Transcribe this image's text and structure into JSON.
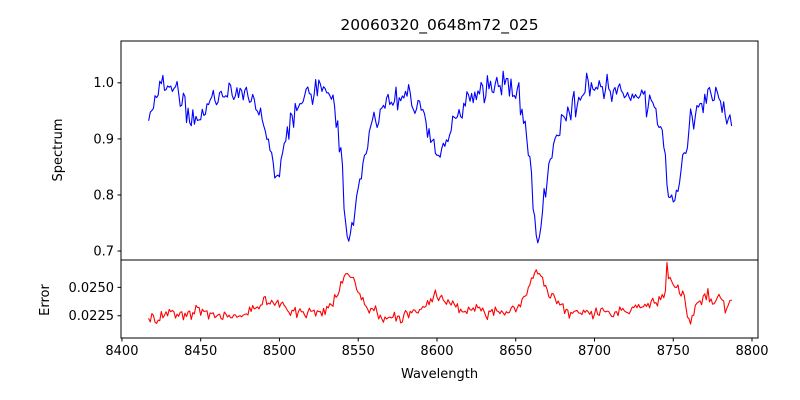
{
  "title": "20060320_0648m72_025",
  "xaxis": {
    "label": "Wavelength",
    "ticks": [
      {
        "v": 8400,
        "label": "8400"
      },
      {
        "v": 8450,
        "label": "8450"
      },
      {
        "v": 8500,
        "label": "8500"
      },
      {
        "v": 8550,
        "label": "8550"
      },
      {
        "v": 8600,
        "label": "8600"
      },
      {
        "v": 8650,
        "label": "8650"
      },
      {
        "v": 8700,
        "label": "8700"
      },
      {
        "v": 8750,
        "label": "8750"
      },
      {
        "v": 8800,
        "label": "8800"
      }
    ],
    "xlim": [
      8399.4,
      8803.8
    ]
  },
  "chart_data": [
    {
      "type": "line",
      "id": "spectrum",
      "ylabel": "Spectrum",
      "color": "#0000ff",
      "line_width": 1.1,
      "grid": false,
      "legend": null,
      "ylim": [
        0.684,
        1.0746
      ],
      "yticks": [
        {
          "v": 0.7,
          "label": "0.7"
        },
        {
          "v": 0.8,
          "label": "0.8"
        },
        {
          "v": 0.9,
          "label": "0.9"
        },
        {
          "v": 1.0,
          "label": "1.0"
        }
      ],
      "x_data_range": [
        8417,
        8787
      ],
      "sample_step": 1.0,
      "noise_sigma": 0.0125,
      "noise_seed": 20060320,
      "clamp": [
        0.695,
        1.062
      ],
      "envelope": [
        [
          8417,
          0.925
        ],
        [
          8419,
          0.96
        ],
        [
          8422,
          0.985
        ],
        [
          8426,
          0.995
        ],
        [
          8430,
          0.99
        ],
        [
          8435,
          0.975
        ],
        [
          8440,
          0.955
        ],
        [
          8444,
          0.935
        ],
        [
          8448,
          0.93
        ],
        [
          8452,
          0.945
        ],
        [
          8456,
          0.965
        ],
        [
          8461,
          0.975
        ],
        [
          8466,
          0.985
        ],
        [
          8472,
          0.988
        ],
        [
          8478,
          0.985
        ],
        [
          8483,
          0.97
        ],
        [
          8488,
          0.945
        ],
        [
          8492,
          0.905
        ],
        [
          8495,
          0.865
        ],
        [
          8497,
          0.835
        ],
        [
          8499,
          0.83
        ],
        [
          8501,
          0.855
        ],
        [
          8504,
          0.9
        ],
        [
          8508,
          0.935
        ],
        [
          8512,
          0.955
        ],
        [
          8517,
          0.975
        ],
        [
          8522,
          0.985
        ],
        [
          8527,
          0.99
        ],
        [
          8531,
          0.985
        ],
        [
          8534,
          0.965
        ],
        [
          8537,
          0.925
        ],
        [
          8539,
          0.87
        ],
        [
          8541,
          0.8
        ],
        [
          8543,
          0.735
        ],
        [
          8544,
          0.72
        ],
        [
          8546,
          0.735
        ],
        [
          8548,
          0.775
        ],
        [
          8551,
          0.83
        ],
        [
          8555,
          0.88
        ],
        [
          8560,
          0.925
        ],
        [
          8566,
          0.955
        ],
        [
          8572,
          0.97
        ],
        [
          8578,
          0.98
        ],
        [
          8584,
          0.975
        ],
        [
          8589,
          0.955
        ],
        [
          8594,
          0.92
        ],
        [
          8598,
          0.88
        ],
        [
          8600,
          0.865
        ],
        [
          8602,
          0.875
        ],
        [
          8606,
          0.9
        ],
        [
          8611,
          0.93
        ],
        [
          8617,
          0.955
        ],
        [
          8623,
          0.975
        ],
        [
          8630,
          0.99
        ],
        [
          8637,
          1.0
        ],
        [
          8643,
          1.0
        ],
        [
          8648,
          0.99
        ],
        [
          8652,
          0.97
        ],
        [
          8656,
          0.93
        ],
        [
          8659,
          0.865
        ],
        [
          8661,
          0.79
        ],
        [
          8663,
          0.73
        ],
        [
          8664,
          0.72
        ],
        [
          8666,
          0.75
        ],
        [
          8669,
          0.81
        ],
        [
          8672,
          0.865
        ],
        [
          8676,
          0.905
        ],
        [
          8681,
          0.935
        ],
        [
          8687,
          0.96
        ],
        [
          8694,
          0.98
        ],
        [
          8701,
          0.995
        ],
        [
          8708,
          0.995
        ],
        [
          8715,
          0.985
        ],
        [
          8722,
          0.985
        ],
        [
          8729,
          0.98
        ],
        [
          8735,
          0.965
        ],
        [
          8740,
          0.935
        ],
        [
          8744,
          0.885
        ],
        [
          8747,
          0.815
        ],
        [
          8749,
          0.785
        ],
        [
          8751,
          0.79
        ],
        [
          8754,
          0.825
        ],
        [
          8757,
          0.875
        ],
        [
          8761,
          0.925
        ],
        [
          8766,
          0.955
        ],
        [
          8771,
          0.97
        ],
        [
          8776,
          0.98
        ],
        [
          8780,
          0.975
        ],
        [
          8783,
          0.955
        ],
        [
          8787,
          0.925
        ]
      ]
    },
    {
      "type": "line",
      "id": "error",
      "ylabel": "Error",
      "color": "#ff0000",
      "line_width": 1.1,
      "grid": false,
      "legend": null,
      "ylim": [
        0.02054,
        0.02741
      ],
      "yticks": [
        {
          "v": 0.0225,
          "label": "0.0225"
        },
        {
          "v": 0.025,
          "label": "0.0250"
        }
      ],
      "x_data_range": [
        8417,
        8787
      ],
      "sample_step": 1.0,
      "noise_sigma": 0.00025,
      "noise_seed": 648725,
      "clamp": [
        0.0211,
        0.0272
      ],
      "envelope": [
        [
          8417,
          0.02235
        ],
        [
          8422,
          0.0222
        ],
        [
          8428,
          0.0227
        ],
        [
          8432,
          0.0229
        ],
        [
          8437,
          0.02245
        ],
        [
          8443,
          0.0227
        ],
        [
          8449,
          0.0229
        ],
        [
          8455,
          0.0227
        ],
        [
          8461,
          0.0225
        ],
        [
          8468,
          0.0224
        ],
        [
          8474,
          0.0225
        ],
        [
          8480,
          0.0228
        ],
        [
          8486,
          0.0233
        ],
        [
          8491,
          0.0237
        ],
        [
          8496,
          0.0238
        ],
        [
          8500,
          0.0236
        ],
        [
          8505,
          0.0229
        ],
        [
          8511,
          0.0226
        ],
        [
          8517,
          0.0227
        ],
        [
          8523,
          0.0226
        ],
        [
          8529,
          0.0229
        ],
        [
          8534,
          0.0237
        ],
        [
          8539,
          0.0252
        ],
        [
          8542,
          0.0261
        ],
        [
          8544,
          0.0262
        ],
        [
          8547,
          0.0255
        ],
        [
          8551,
          0.0242
        ],
        [
          8555,
          0.0233
        ],
        [
          8560,
          0.0228
        ],
        [
          8566,
          0.0224
        ],
        [
          8572,
          0.0223
        ],
        [
          8579,
          0.0225
        ],
        [
          8586,
          0.0228
        ],
        [
          8592,
          0.0233
        ],
        [
          8597,
          0.024
        ],
        [
          8601,
          0.0242
        ],
        [
          8605,
          0.0239
        ],
        [
          8610,
          0.0234
        ],
        [
          8616,
          0.0231
        ],
        [
          8622,
          0.0232
        ],
        [
          8628,
          0.023
        ],
        [
          8634,
          0.0229
        ],
        [
          8641,
          0.0229
        ],
        [
          8647,
          0.0229
        ],
        [
          8652,
          0.0233
        ],
        [
          8656,
          0.0243
        ],
        [
          8660,
          0.0256
        ],
        [
          8663,
          0.0263
        ],
        [
          8666,
          0.0259
        ],
        [
          8670,
          0.0248
        ],
        [
          8674,
          0.0239
        ],
        [
          8679,
          0.0232
        ],
        [
          8685,
          0.0229
        ],
        [
          8691,
          0.0227
        ],
        [
          8697,
          0.0226
        ],
        [
          8703,
          0.0227
        ],
        [
          8709,
          0.0228
        ],
        [
          8715,
          0.0229
        ],
        [
          8721,
          0.0229
        ],
        [
          8727,
          0.0231
        ],
        [
          8733,
          0.0233
        ],
        [
          8738,
          0.0236
        ],
        [
          8742,
          0.024
        ],
        [
          8745,
          0.0244
        ],
        [
          8746,
          0.0271
        ],
        [
          8747,
          0.0258
        ],
        [
          8750,
          0.0253
        ],
        [
          8753,
          0.0251
        ],
        [
          8756,
          0.0246
        ],
        [
          8759,
          0.0228
        ],
        [
          8761,
          0.0222
        ],
        [
          8764,
          0.0233
        ],
        [
          8768,
          0.024
        ],
        [
          8772,
          0.0242
        ],
        [
          8775,
          0.0238
        ],
        [
          8778,
          0.0242
        ],
        [
          8781,
          0.024
        ],
        [
          8783,
          0.0231
        ],
        [
          8787,
          0.0237
        ]
      ]
    }
  ]
}
